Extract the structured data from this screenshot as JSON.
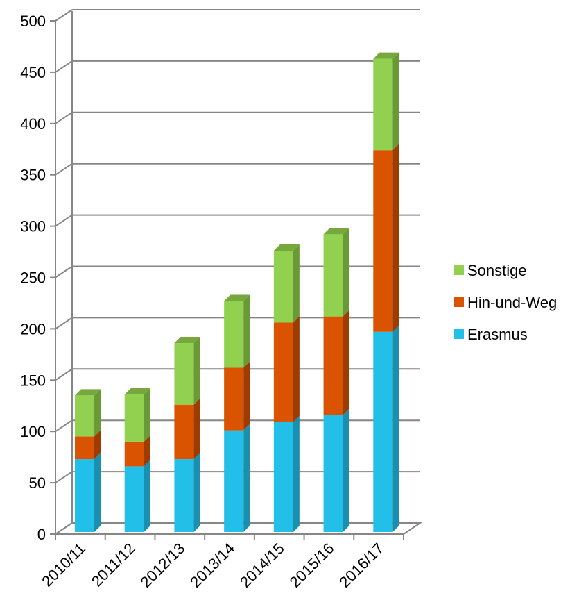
{
  "chart_data": {
    "type": "bar",
    "stacked": true,
    "style": "3d-column",
    "categories": [
      "2010/11",
      "2011/12",
      "2012/13",
      "2013/14",
      "2014/15",
      "2015/16",
      "2016/17"
    ],
    "series": [
      {
        "name": "Erasmus",
        "values": [
          71,
          64,
          71,
          99,
          107,
          114,
          195
        ],
        "color": "#22BFE9",
        "side_color": "#1A8FAF",
        "top_color": "#7FDBF4"
      },
      {
        "name": "Hin-und-Weg",
        "values": [
          22,
          24,
          53,
          61,
          97,
          96,
          177
        ],
        "color": "#D95300",
        "side_color": "#9E3C00",
        "top_color": "#E88445"
      },
      {
        "name": "Sonstige",
        "values": [
          40,
          46,
          60,
          65,
          70,
          80,
          89
        ],
        "color": "#92D050",
        "side_color": "#6A9A36",
        "top_color": "#76A83E"
      }
    ],
    "y_ticks": [
      "0",
      "50",
      "100",
      "150",
      "200",
      "250",
      "300",
      "350",
      "400",
      "450",
      "500"
    ],
    "ylim": [
      0,
      500
    ],
    "title": "",
    "xlabel": "",
    "ylabel": "",
    "grid": true,
    "legend_position": "right",
    "legend_order": [
      "Sonstige",
      "Hin-und-Weg",
      "Erasmus"
    ],
    "gridline_color": "#868686"
  }
}
